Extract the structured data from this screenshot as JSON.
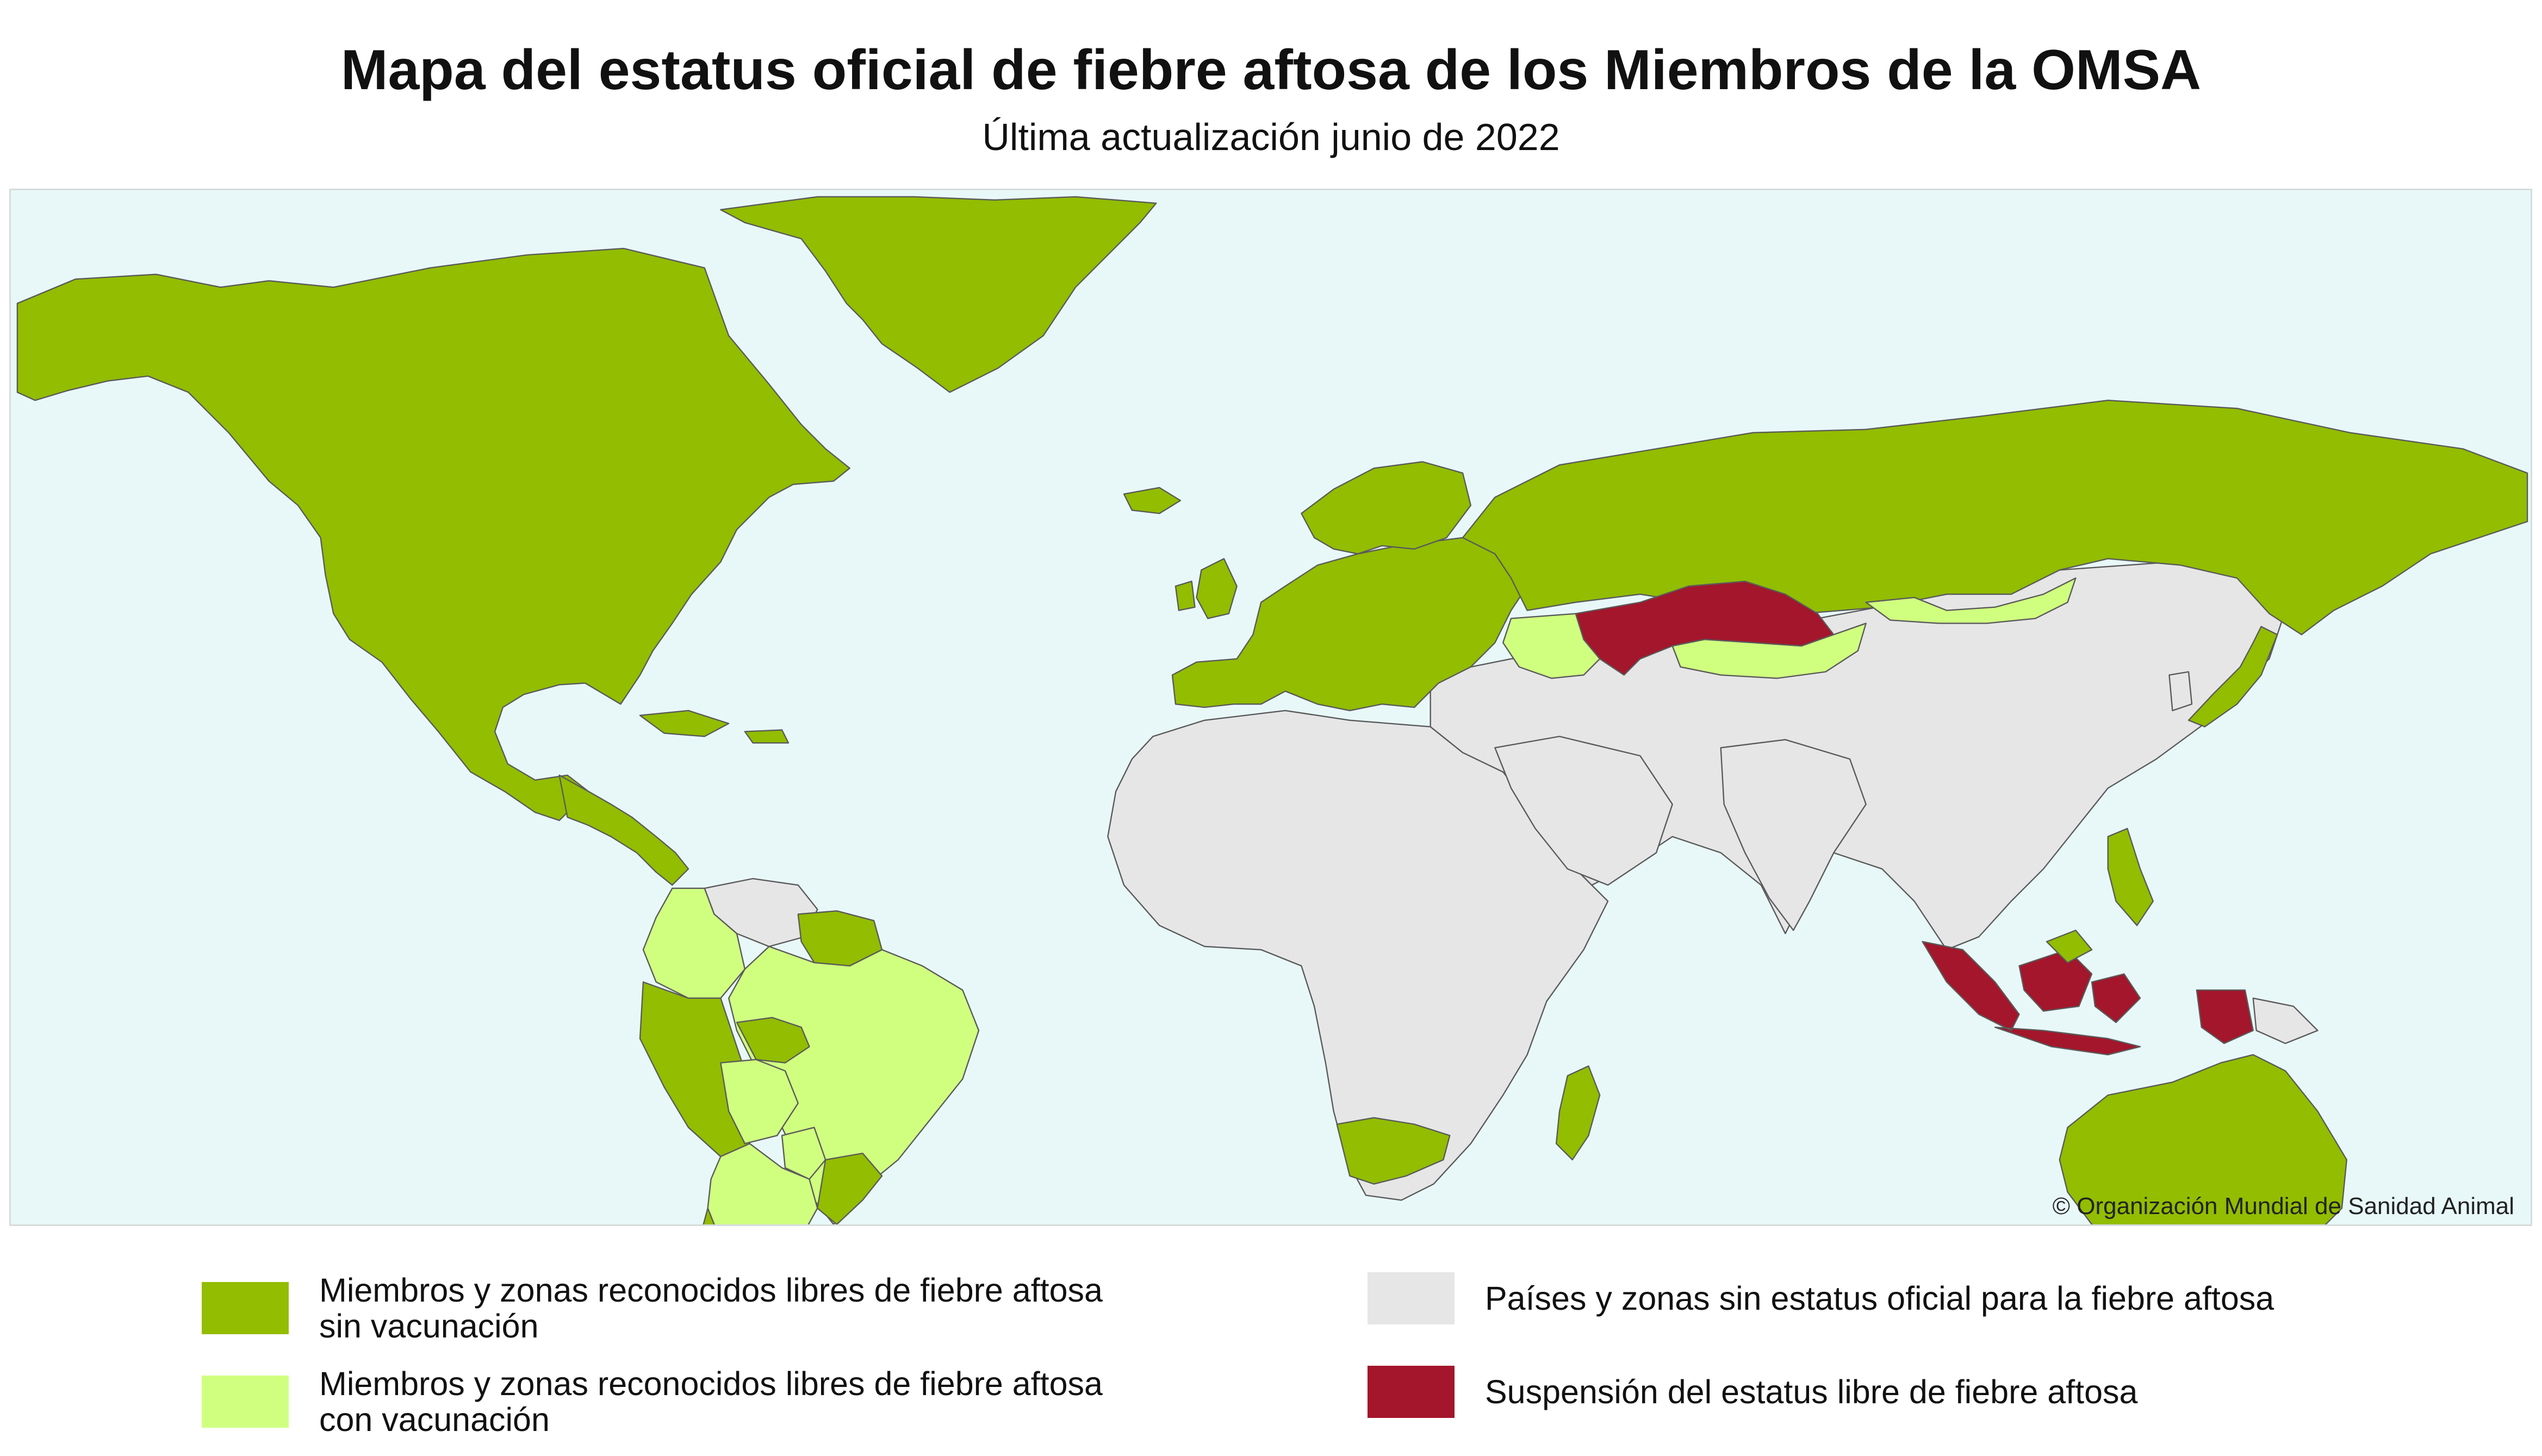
{
  "title": "Mapa del estatus oficial de fiebre aftosa de los Miembros de la OMSA",
  "subtitle": "Última actualización junio de 2022",
  "map": {
    "copyright": "© Organización Mundial de Sanidad Animal",
    "ocean_color": "#e8f8f8",
    "border_color": "#5a5a5a"
  },
  "legend": {
    "items": [
      {
        "id": "free-without-vaccination",
        "color": "#92bd00",
        "line1": "Miembros y zonas reconocidos libres de fiebre aftosa",
        "line2": "sin vacunación"
      },
      {
        "id": "free-with-vaccination",
        "color": "#d0ff80",
        "line1": "Miembros y zonas reconocidos libres de fiebre aftosa",
        "line2": "con vacunación"
      },
      {
        "id": "no-official-status",
        "color": "#e6e6e6",
        "line1": "Países y zonas sin estatus oficial para la fiebre aftosa",
        "line2": ""
      },
      {
        "id": "suspended",
        "color": "#a3162b",
        "line1": "Suspensión del estatus libre de fiebre aftosa",
        "line2": ""
      }
    ]
  }
}
